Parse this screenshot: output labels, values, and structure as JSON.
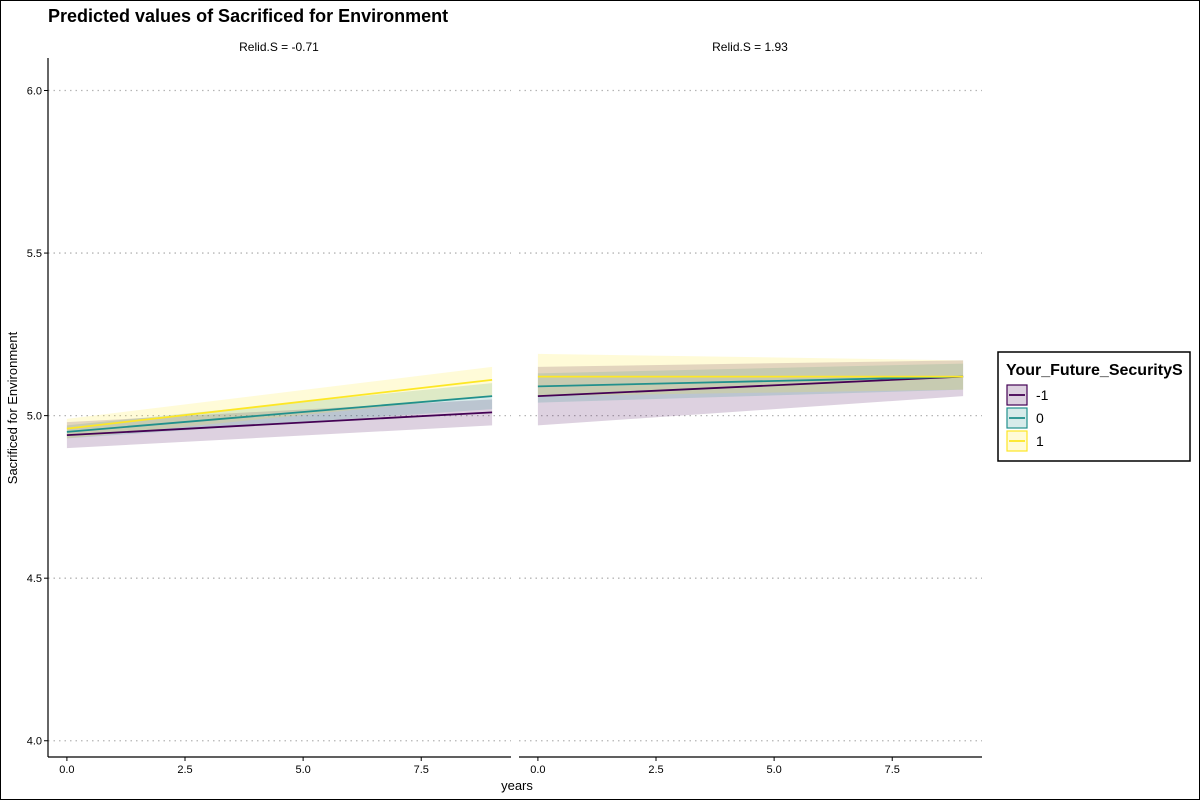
{
  "chart_data": {
    "type": "line",
    "title": "Predicted values of Sacrificed for Environment",
    "xlabel": "years",
    "ylabel": "Sacrificed for Environment",
    "xlim": [
      -0.4,
      9.4
    ],
    "ylim": [
      3.95,
      6.1
    ],
    "x_ticks": [
      "0.0",
      "2.5",
      "5.0",
      "7.5"
    ],
    "y_ticks": [
      "4.0",
      "4.5",
      "5.0",
      "5.5",
      "6.0"
    ],
    "grid": "dotted horizontal major gridlines",
    "legend": {
      "title": "Your_Future_SecurityS",
      "position": "right",
      "entries": [
        {
          "label": "-1",
          "color": "#440154"
        },
        {
          "label": "0",
          "color": "#21908C"
        },
        {
          "label": "1",
          "color": "#FDE725"
        }
      ]
    },
    "panels": [
      {
        "label": "Relid.S = -0.71",
        "series": [
          {
            "name": "-1",
            "color": "#440154",
            "x": [
              0,
              9
            ],
            "y": [
              4.94,
              5.01
            ],
            "lower": [
              4.9,
              4.97
            ],
            "upper": [
              4.98,
              5.05
            ]
          },
          {
            "name": "0",
            "color": "#21908C",
            "x": [
              0,
              9
            ],
            "y": [
              4.95,
              5.06
            ],
            "lower": [
              4.93,
              5.02
            ],
            "upper": [
              4.97,
              5.1
            ]
          },
          {
            "name": "1",
            "color": "#FDE725",
            "x": [
              0,
              9
            ],
            "y": [
              4.96,
              5.11
            ],
            "lower": [
              4.93,
              5.06
            ],
            "upper": [
              4.99,
              5.15
            ]
          }
        ]
      },
      {
        "label": "Relid.S = 1.93",
        "series": [
          {
            "name": "-1",
            "color": "#440154",
            "x": [
              0,
              9
            ],
            "y": [
              5.06,
              5.12
            ],
            "lower": [
              4.97,
              5.06
            ],
            "upper": [
              5.15,
              5.17
            ]
          },
          {
            "name": "0",
            "color": "#21908C",
            "x": [
              0,
              9
            ],
            "y": [
              5.09,
              5.12
            ],
            "lower": [
              5.04,
              5.08
            ],
            "upper": [
              5.13,
              5.16
            ]
          },
          {
            "name": "1",
            "color": "#FDE725",
            "x": [
              0,
              9
            ],
            "y": [
              5.12,
              5.12
            ],
            "lower": [
              5.06,
              5.08
            ],
            "upper": [
              5.19,
              5.17
            ]
          }
        ]
      }
    ]
  }
}
